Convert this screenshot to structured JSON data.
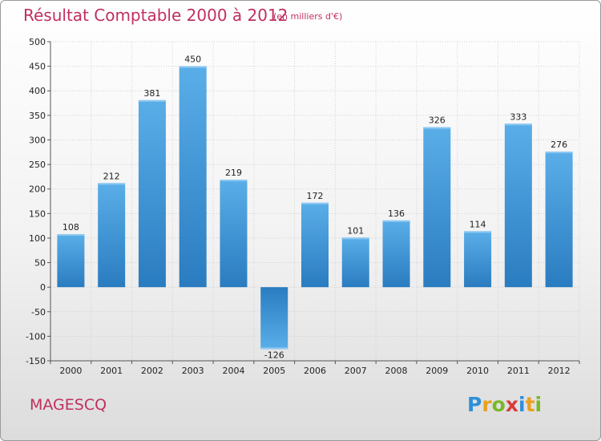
{
  "title": "Résultat Comptable 2000 à 2012",
  "unit": "(en milliers d'€)",
  "commune": "MAGESCQ",
  "logo": {
    "letters": [
      {
        "char": "P",
        "color": "#2f8fd8"
      },
      {
        "char": "r",
        "color": "#e8a020"
      },
      {
        "char": "o",
        "color": "#7ab828"
      },
      {
        "char": "x",
        "color": "#d83b3b"
      },
      {
        "char": "i",
        "color": "#2f8fd8"
      },
      {
        "char": "t",
        "color": "#e8a020"
      },
      {
        "char": "i",
        "color": "#7ab828"
      }
    ]
  },
  "chart_data": {
    "type": "bar",
    "title": "Résultat Comptable 2000 à 2012",
    "categories": [
      "2000",
      "2001",
      "2002",
      "2003",
      "2004",
      "2005",
      "2006",
      "2007",
      "2008",
      "2009",
      "2010",
      "2011",
      "2012"
    ],
    "values": [
      108,
      212,
      381,
      450,
      219,
      -126,
      172,
      101,
      136,
      326,
      114,
      333,
      276
    ],
    "ylim": [
      -150,
      500
    ],
    "yticks": [
      500,
      450,
      400,
      350,
      300,
      250,
      200,
      150,
      100,
      50,
      0,
      -50,
      -100,
      -150
    ],
    "ytick_labels": [
      "500",
      "450",
      "400",
      "350",
      "300",
      "250",
      "200",
      "150",
      "100",
      "50",
      "0",
      "-50",
      "-100",
      "-150"
    ],
    "grid": true,
    "bar_color_top": "#5aaee8",
    "bar_color_bottom": "#2a7cc0"
  }
}
